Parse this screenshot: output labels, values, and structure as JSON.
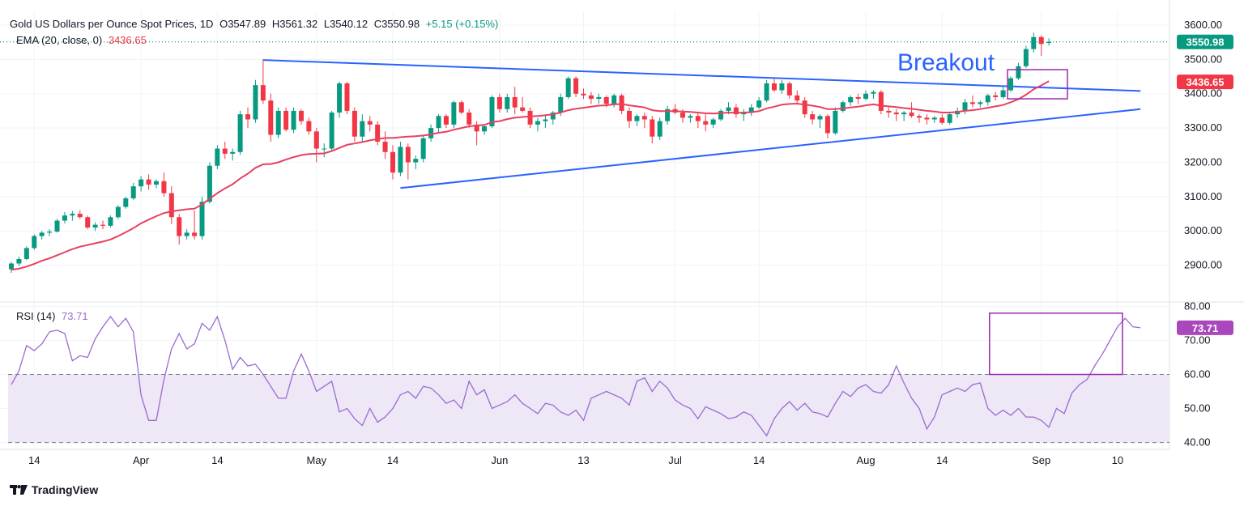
{
  "header": {
    "title": "Gold US Dollars per Ounce Spot Prices, 1D",
    "open_label": "O",
    "open": "3547.89",
    "high_label": "H",
    "high": "3561.32",
    "low_label": "L",
    "low": "3540.12",
    "close_label": "C",
    "close": "3550.98",
    "change": "+5.15 (+0.15%)",
    "ema_label": "EMA (20, close, 0)",
    "ema_value": "3436.65",
    "rsi_label": "RSI (14)",
    "rsi_value": "73.71"
  },
  "annotations": {
    "breakout": "Breakout"
  },
  "brand": {
    "name": "TradingView"
  },
  "colors": {
    "up": "#089981",
    "down": "#f23645",
    "ema": "#e8415f",
    "trend": "#2962ff",
    "rsi": "#9c6ad4",
    "box": "#9c27b0",
    "band": "#ede7f6"
  },
  "chart_data": [
    {
      "type": "candlestick",
      "title": "Gold US Dollars per Ounce Spot Prices, 1D",
      "x_tick_labels": [
        "14",
        "Apr",
        "14",
        "May",
        "14",
        "Jun",
        "13",
        "Jul",
        "14",
        "Aug",
        "14",
        "Sep",
        "10"
      ],
      "y_tick_labels": [
        "2900.00",
        "3000.00",
        "3100.00",
        "3200.00",
        "3300.00",
        "3400.00",
        "3500.00",
        "3600.00"
      ],
      "ylim": [
        2800,
        3640
      ],
      "last_price_label": "3550.98",
      "ema_label": "3436.65",
      "candles": [
        [
          2888,
          2910,
          2878,
          2905
        ],
        [
          2905,
          2925,
          2898,
          2918
        ],
        [
          2918,
          2955,
          2915,
          2950
        ],
        [
          2950,
          2990,
          2945,
          2985
        ],
        [
          2985,
          3000,
          2975,
          2995
        ],
        [
          2995,
          3005,
          2985,
          2998
        ],
        [
          2998,
          3035,
          2995,
          3030
        ],
        [
          3030,
          3055,
          3022,
          3045
        ],
        [
          3045,
          3058,
          3030,
          3050
        ],
        [
          3050,
          3060,
          3035,
          3040
        ],
        [
          3040,
          3045,
          3005,
          3010
        ],
        [
          3010,
          3025,
          3000,
          3018
        ],
        [
          3018,
          3030,
          3005,
          3015
        ],
        [
          3015,
          3045,
          3010,
          3040
        ],
        [
          3040,
          3075,
          3035,
          3070
        ],
        [
          3070,
          3100,
          3065,
          3095
        ],
        [
          3095,
          3140,
          3090,
          3130
        ],
        [
          3130,
          3160,
          3115,
          3150
        ],
        [
          3150,
          3165,
          3120,
          3135
        ],
        [
          3135,
          3150,
          3125,
          3145
        ],
        [
          3145,
          3170,
          3100,
          3110
        ],
        [
          3110,
          3130,
          3020,
          3040
        ],
        [
          3040,
          3050,
          2960,
          2985
        ],
        [
          2985,
          3005,
          2975,
          2995
        ],
        [
          2995,
          3060,
          2975,
          2985
        ],
        [
          2985,
          3100,
          2975,
          3085
        ],
        [
          3085,
          3200,
          3080,
          3190
        ],
        [
          3190,
          3250,
          3180,
          3240
        ],
        [
          3240,
          3260,
          3210,
          3225
        ],
        [
          3225,
          3240,
          3205,
          3230
        ],
        [
          3230,
          3350,
          3222,
          3340
        ],
        [
          3340,
          3360,
          3300,
          3325
        ],
        [
          3325,
          3440,
          3315,
          3425
        ],
        [
          3425,
          3500,
          3370,
          3380
        ],
        [
          3380,
          3400,
          3260,
          3280
        ],
        [
          3280,
          3360,
          3270,
          3350
        ],
        [
          3350,
          3360,
          3290,
          3295
        ],
        [
          3295,
          3360,
          3285,
          3350
        ],
        [
          3350,
          3355,
          3310,
          3320
        ],
        [
          3320,
          3330,
          3280,
          3290
        ],
        [
          3290,
          3300,
          3200,
          3240
        ],
        [
          3240,
          3255,
          3215,
          3240
        ],
        [
          3240,
          3350,
          3235,
          3345
        ],
        [
          3345,
          3435,
          3330,
          3430
        ],
        [
          3430,
          3435,
          3340,
          3350
        ],
        [
          3350,
          3360,
          3260,
          3275
        ],
        [
          3275,
          3340,
          3260,
          3320
        ],
        [
          3320,
          3335,
          3290,
          3310
        ],
        [
          3310,
          3320,
          3250,
          3260
        ],
        [
          3260,
          3290,
          3210,
          3230
        ],
        [
          3230,
          3250,
          3150,
          3170
        ],
        [
          3170,
          3260,
          3160,
          3245
        ],
        [
          3245,
          3255,
          3150,
          3200
        ],
        [
          3200,
          3220,
          3180,
          3210
        ],
        [
          3210,
          3280,
          3200,
          3270
        ],
        [
          3270,
          3310,
          3260,
          3300
        ],
        [
          3300,
          3340,
          3285,
          3335
        ],
        [
          3335,
          3340,
          3300,
          3310
        ],
        [
          3310,
          3380,
          3300,
          3375
        ],
        [
          3375,
          3380,
          3340,
          3345
        ],
        [
          3345,
          3355,
          3300,
          3310
        ],
        [
          3310,
          3320,
          3250,
          3290
        ],
        [
          3290,
          3310,
          3280,
          3305
        ],
        [
          3305,
          3395,
          3300,
          3390
        ],
        [
          3390,
          3400,
          3345,
          3355
        ],
        [
          3355,
          3400,
          3345,
          3390
        ],
        [
          3390,
          3420,
          3340,
          3360
        ],
        [
          3360,
          3390,
          3345,
          3350
        ],
        [
          3350,
          3360,
          3300,
          3310
        ],
        [
          3310,
          3330,
          3290,
          3320
        ],
        [
          3320,
          3340,
          3300,
          3325
        ],
        [
          3325,
          3350,
          3310,
          3345
        ],
        [
          3345,
          3400,
          3335,
          3390
        ],
        [
          3390,
          3450,
          3385,
          3445
        ],
        [
          3445,
          3450,
          3390,
          3400
        ],
        [
          3400,
          3415,
          3385,
          3395
        ],
        [
          3395,
          3405,
          3370,
          3385
        ],
        [
          3385,
          3400,
          3370,
          3390
        ],
        [
          3390,
          3395,
          3360,
          3370
        ],
        [
          3370,
          3400,
          3360,
          3395
        ],
        [
          3395,
          3400,
          3340,
          3350
        ],
        [
          3350,
          3360,
          3300,
          3320
        ],
        [
          3320,
          3340,
          3305,
          3335
        ],
        [
          3335,
          3345,
          3300,
          3325
        ],
        [
          3325,
          3335,
          3255,
          3275
        ],
        [
          3275,
          3330,
          3265,
          3320
        ],
        [
          3320,
          3365,
          3310,
          3355
        ],
        [
          3355,
          3370,
          3340,
          3345
        ],
        [
          3345,
          3355,
          3315,
          3330
        ],
        [
          3330,
          3340,
          3315,
          3335
        ],
        [
          3335,
          3345,
          3300,
          3320
        ],
        [
          3320,
          3340,
          3290,
          3310
        ],
        [
          3310,
          3330,
          3300,
          3325
        ],
        [
          3325,
          3355,
          3320,
          3350
        ],
        [
          3350,
          3375,
          3340,
          3360
        ],
        [
          3360,
          3370,
          3330,
          3340
        ],
        [
          3340,
          3355,
          3320,
          3345
        ],
        [
          3345,
          3370,
          3335,
          3360
        ],
        [
          3360,
          3390,
          3355,
          3380
        ],
        [
          3380,
          3440,
          3375,
          3430
        ],
        [
          3430,
          3445,
          3405,
          3410
        ],
        [
          3410,
          3440,
          3400,
          3430
        ],
        [
          3430,
          3435,
          3385,
          3395
        ],
        [
          3395,
          3410,
          3370,
          3380
        ],
        [
          3380,
          3390,
          3330,
          3340
        ],
        [
          3340,
          3350,
          3310,
          3325
        ],
        [
          3325,
          3340,
          3300,
          3335
        ],
        [
          3335,
          3340,
          3270,
          3285
        ],
        [
          3285,
          3360,
          3280,
          3350
        ],
        [
          3350,
          3380,
          3345,
          3375
        ],
        [
          3375,
          3395,
          3365,
          3390
        ],
        [
          3390,
          3400,
          3370,
          3385
        ],
        [
          3385,
          3410,
          3380,
          3400
        ],
        [
          3400,
          3410,
          3385,
          3405
        ],
        [
          3405,
          3410,
          3340,
          3350
        ],
        [
          3350,
          3360,
          3330,
          3345
        ],
        [
          3345,
          3355,
          3320,
          3340
        ],
        [
          3340,
          3350,
          3320,
          3345
        ],
        [
          3345,
          3375,
          3330,
          3335
        ],
        [
          3335,
          3340,
          3315,
          3330
        ],
        [
          3330,
          3340,
          3310,
          3325
        ],
        [
          3325,
          3335,
          3315,
          3330
        ],
        [
          3330,
          3340,
          3310,
          3315
        ],
        [
          3315,
          3345,
          3310,
          3340
        ],
        [
          3340,
          3360,
          3330,
          3350
        ],
        [
          3350,
          3385,
          3340,
          3375
        ],
        [
          3375,
          3395,
          3360,
          3370
        ],
        [
          3370,
          3380,
          3360,
          3375
        ],
        [
          3375,
          3400,
          3365,
          3395
        ],
        [
          3395,
          3405,
          3380,
          3390
        ],
        [
          3390,
          3420,
          3385,
          3410
        ],
        [
          3410,
          3450,
          3405,
          3445
        ],
        [
          3445,
          3490,
          3440,
          3480
        ],
        [
          3480,
          3540,
          3475,
          3530
        ],
        [
          3530,
          3578,
          3520,
          3565
        ],
        [
          3565,
          3570,
          3510,
          3545
        ],
        [
          3547.89,
          3561.32,
          3540.12,
          3550.98
        ]
      ],
      "ema": [
        2887,
        2890,
        2896,
        2904,
        2913,
        2920,
        2929,
        2938,
        2947,
        2954,
        2959,
        2964,
        2969,
        2975,
        2985,
        2996,
        3008,
        3022,
        3033,
        3043,
        3052,
        3057,
        3060,
        3063,
        3065,
        3077,
        3094,
        3110,
        3124,
        3136,
        3153,
        3167,
        3184,
        3194,
        3195,
        3200,
        3208,
        3215,
        3221,
        3224,
        3225,
        3226,
        3233,
        3242,
        3251,
        3255,
        3259,
        3264,
        3268,
        3271,
        3271,
        3273,
        3275,
        3276,
        3278,
        3281,
        3286,
        3289,
        3295,
        3300,
        3305,
        3307,
        3309,
        3317,
        3320,
        3326,
        3330,
        3332,
        3334,
        3335,
        3337,
        3340,
        3345,
        3352,
        3356,
        3359,
        3362,
        3365,
        3366,
        3369,
        3370,
        3366,
        3363,
        3360,
        3352,
        3349,
        3349,
        3349,
        3348,
        3347,
        3345,
        3343,
        3342,
        3343,
        3345,
        3344,
        3345,
        3346,
        3349,
        3357,
        3362,
        3368,
        3370,
        3371,
        3368,
        3365,
        3361,
        3355,
        3355,
        3357,
        3360,
        3362,
        3366,
        3369,
        3365,
        3363,
        3361,
        3358,
        3356,
        3353,
        3350,
        3348,
        3345,
        3345,
        3347,
        3350,
        3352,
        3355,
        3359,
        3363,
        3367,
        3375,
        3384,
        3397,
        3413,
        3424,
        3436.65
      ]
    },
    {
      "type": "line",
      "title": "RSI (14)",
      "y_tick_labels": [
        "40.00",
        "50.00",
        "60.00",
        "70.00",
        "80.00"
      ],
      "ylim": [
        38,
        82
      ],
      "band": [
        40,
        60
      ],
      "last_value_label": "73.71",
      "values": [
        57,
        61,
        68.5,
        67,
        69,
        72.5,
        73,
        72,
        64,
        65.5,
        65,
        70.5,
        74,
        77,
        74,
        76.5,
        72.5,
        54,
        46.5,
        46.5,
        58.5,
        67.5,
        72,
        67.5,
        69,
        75,
        73,
        77,
        70,
        61.5,
        65,
        62.5,
        63,
        60,
        56.5,
        53,
        53,
        61,
        66,
        61,
        55,
        56.5,
        58,
        49,
        50,
        47,
        45,
        50,
        46,
        47.5,
        50,
        54,
        55,
        53,
        56.5,
        56,
        54,
        51.5,
        52.5,
        50,
        58,
        54,
        55.5,
        50,
        51,
        52,
        54,
        51.5,
        50,
        48.5,
        51.5,
        51,
        49,
        48,
        49.5,
        46.5,
        53,
        54,
        55,
        54,
        53,
        51,
        58,
        59,
        55,
        58,
        56,
        52.5,
        51,
        50,
        47,
        50.5,
        49.5,
        48.5,
        47,
        47.5,
        49,
        48,
        45,
        42,
        47,
        50,
        52,
        49.5,
        51.5,
        49,
        48.5,
        47.5,
        51.5,
        55,
        53.5,
        56,
        57,
        55,
        54.5,
        57,
        62.5,
        57.5,
        53,
        50,
        44,
        47.5,
        54,
        55,
        56,
        55,
        57,
        57.5,
        50,
        48,
        49.5,
        48,
        50,
        47.5,
        47.5,
        46.5,
        44.5,
        50,
        48.5,
        54.5,
        57,
        58.5,
        62.5,
        66,
        70,
        74,
        76.5,
        74,
        73.71
      ]
    }
  ]
}
